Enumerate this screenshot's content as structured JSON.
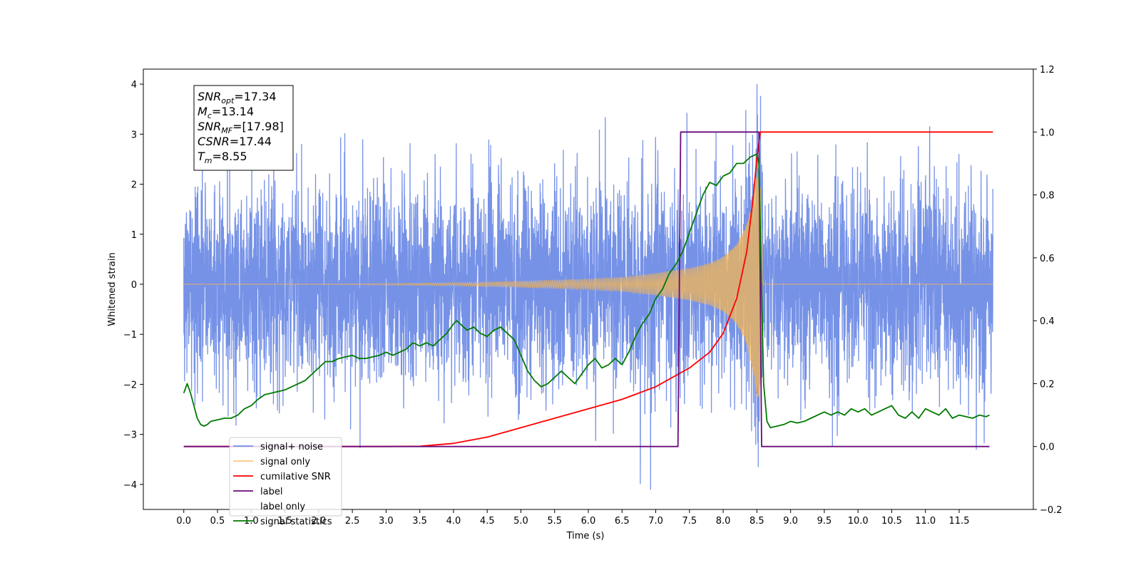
{
  "chart_data": {
    "type": "line",
    "title": "",
    "xlabel": "Time (s)",
    "ylabel": "Whitened strain",
    "y2label": "",
    "xlim": [
      -0.6,
      12.6
    ],
    "ylim": [
      -4.5,
      4.3
    ],
    "y2lim": [
      -0.2,
      1.2
    ],
    "x_ticks": [
      0.0,
      0.5,
      1.0,
      1.5,
      2.0,
      2.5,
      3.0,
      3.5,
      4.0,
      4.5,
      5.0,
      5.5,
      6.0,
      6.5,
      7.0,
      7.5,
      8.0,
      8.5,
      9.0,
      9.5,
      10.0,
      10.5,
      11.0,
      11.5
    ],
    "x_tick_labels": [
      "0.0",
      "0.5",
      "1.0",
      "1.5",
      "2.0",
      "2.5",
      "3.0",
      "3.5",
      "4.0",
      "4.5",
      "5.0",
      "5.5",
      "6.0",
      "6.5",
      "7.0",
      "7.5",
      "8.0",
      "8.5",
      "9.0",
      "9.5",
      "10.0",
      "10.5",
      "11.0",
      "11.5"
    ],
    "y_ticks": [
      4,
      3,
      2,
      1,
      0,
      -1,
      -2,
      -3,
      -4
    ],
    "y_tick_labels": [
      "4",
      "3",
      "2",
      "1",
      "0",
      "−1",
      "−2",
      "−3",
      "−4"
    ],
    "y2_ticks": [
      1.2,
      1.0,
      0.8,
      0.6,
      0.4,
      0.2,
      0.0,
      -0.2
    ],
    "y2_tick_labels": [
      "1.2",
      "1.0",
      "0.8",
      "0.6",
      "0.4",
      "0.2",
      "0.0",
      "−0.2"
    ],
    "grid": false,
    "legend_position": "lower-left",
    "series": [
      {
        "name": "signal+ noise",
        "axis": "left",
        "color": "#6f8ce6",
        "description_values": "whitened noise of ~0.9 std with peaks near ±3.5, plus chirp signal",
        "x_range": [
          0.0,
          12.0
        ]
      },
      {
        "name": "signal only",
        "axis": "left",
        "color": "#f5b653",
        "chirp_envelope": {
          "x": [
            0.0,
            2.0,
            4.0,
            5.0,
            6.0,
            6.5,
            7.0,
            7.5,
            7.8,
            8.0,
            8.2,
            8.35,
            8.45,
            8.5,
            8.55,
            8.6,
            12.0
          ],
          "amplitude": [
            0.0,
            0.0,
            0.03,
            0.06,
            0.1,
            0.14,
            0.22,
            0.32,
            0.42,
            0.55,
            0.8,
            1.2,
            1.8,
            2.3,
            2.2,
            0.0,
            0.0
          ]
        }
      },
      {
        "name": "cumilative SNR",
        "axis": "right",
        "color": "#ff0000",
        "x": [
          0.0,
          3.0,
          3.5,
          4.0,
          4.5,
          5.0,
          5.5,
          6.0,
          6.5,
          7.0,
          7.5,
          7.8,
          8.0,
          8.2,
          8.35,
          8.45,
          8.5,
          8.55,
          8.56,
          12.0
        ],
        "values": [
          0.0,
          0.0,
          0.001,
          0.01,
          0.03,
          0.06,
          0.09,
          0.12,
          0.15,
          0.19,
          0.25,
          0.3,
          0.36,
          0.47,
          0.62,
          0.8,
          0.92,
          1.0,
          1.0,
          1.0
        ]
      },
      {
        "name": "label",
        "axis": "right",
        "color": "#6a0a7a",
        "x": [
          0.0,
          7.33,
          7.37,
          8.53,
          8.57,
          11.95
        ],
        "values": [
          0.0,
          0.0,
          1.0,
          1.0,
          0.0,
          0.0
        ]
      },
      {
        "name": "label only",
        "axis": "right",
        "color": "#ffffff",
        "legend_only": true
      },
      {
        "name": "signal statistics",
        "axis": "right",
        "color": "#007a00",
        "x": [
          0.0,
          0.05,
          0.1,
          0.15,
          0.2,
          0.25,
          0.3,
          0.35,
          0.4,
          0.5,
          0.6,
          0.7,
          0.8,
          0.9,
          1.0,
          1.1,
          1.2,
          1.3,
          1.4,
          1.5,
          1.6,
          1.7,
          1.8,
          1.9,
          2.0,
          2.1,
          2.2,
          2.3,
          2.4,
          2.5,
          2.6,
          2.7,
          2.8,
          2.9,
          3.0,
          3.1,
          3.2,
          3.3,
          3.4,
          3.5,
          3.6,
          3.7,
          3.8,
          3.9,
          4.0,
          4.05,
          4.1,
          4.2,
          4.3,
          4.4,
          4.5,
          4.6,
          4.7,
          4.8,
          4.9,
          5.0,
          5.1,
          5.2,
          5.3,
          5.4,
          5.5,
          5.6,
          5.7,
          5.8,
          5.9,
          6.0,
          6.1,
          6.2,
          6.3,
          6.4,
          6.5,
          6.6,
          6.7,
          6.8,
          6.9,
          7.0,
          7.1,
          7.2,
          7.3,
          7.4,
          7.5,
          7.6,
          7.65,
          7.7,
          7.8,
          7.9,
          8.0,
          8.1,
          8.2,
          8.3,
          8.4,
          8.5,
          8.53,
          8.56,
          8.6,
          8.65,
          8.7,
          8.8,
          8.9,
          9.0,
          9.1,
          9.2,
          9.3,
          9.4,
          9.5,
          9.6,
          9.7,
          9.8,
          9.9,
          10.0,
          10.1,
          10.2,
          10.3,
          10.4,
          10.5,
          10.6,
          10.7,
          10.8,
          10.9,
          11.0,
          11.1,
          11.2,
          11.3,
          11.4,
          11.5,
          11.6,
          11.7,
          11.8,
          11.9,
          11.95
        ],
        "values": [
          0.17,
          0.2,
          0.17,
          0.13,
          0.09,
          0.07,
          0.065,
          0.07,
          0.08,
          0.085,
          0.09,
          0.09,
          0.1,
          0.12,
          0.13,
          0.15,
          0.165,
          0.17,
          0.175,
          0.18,
          0.19,
          0.2,
          0.21,
          0.23,
          0.25,
          0.27,
          0.27,
          0.28,
          0.285,
          0.29,
          0.28,
          0.28,
          0.285,
          0.29,
          0.3,
          0.29,
          0.3,
          0.31,
          0.33,
          0.32,
          0.33,
          0.32,
          0.34,
          0.36,
          0.39,
          0.4,
          0.39,
          0.37,
          0.38,
          0.36,
          0.35,
          0.37,
          0.38,
          0.36,
          0.34,
          0.29,
          0.24,
          0.21,
          0.19,
          0.2,
          0.22,
          0.24,
          0.22,
          0.2,
          0.23,
          0.26,
          0.28,
          0.25,
          0.26,
          0.28,
          0.26,
          0.3,
          0.35,
          0.39,
          0.42,
          0.47,
          0.5,
          0.55,
          0.58,
          0.62,
          0.68,
          0.74,
          0.77,
          0.8,
          0.84,
          0.83,
          0.86,
          0.87,
          0.9,
          0.9,
          0.92,
          0.93,
          0.9,
          0.6,
          0.2,
          0.08,
          0.06,
          0.065,
          0.07,
          0.08,
          0.075,
          0.08,
          0.09,
          0.1,
          0.11,
          0.1,
          0.11,
          0.1,
          0.12,
          0.11,
          0.12,
          0.1,
          0.11,
          0.12,
          0.13,
          0.1,
          0.09,
          0.11,
          0.09,
          0.12,
          0.11,
          0.1,
          0.12,
          0.09,
          0.1,
          0.095,
          0.09,
          0.1,
          0.095,
          0.1
        ]
      }
    ],
    "legend": [
      "signal+ noise",
      "signal only",
      "cumilative SNR",
      "label",
      "label only",
      "signal statistics"
    ],
    "annotation_box": {
      "lines": [
        {
          "base": "SNR",
          "sub": "opt",
          "value": "=17.34"
        },
        {
          "base": "M",
          "sub": "c",
          "value": "=13.14"
        },
        {
          "base": "SNR",
          "sub": "MF",
          "value": "=[17.98]"
        },
        {
          "base": "CSNR",
          "sub": "",
          "value": "=17.44"
        },
        {
          "base": "T",
          "sub": "m",
          "value": "=8.55"
        }
      ]
    }
  }
}
